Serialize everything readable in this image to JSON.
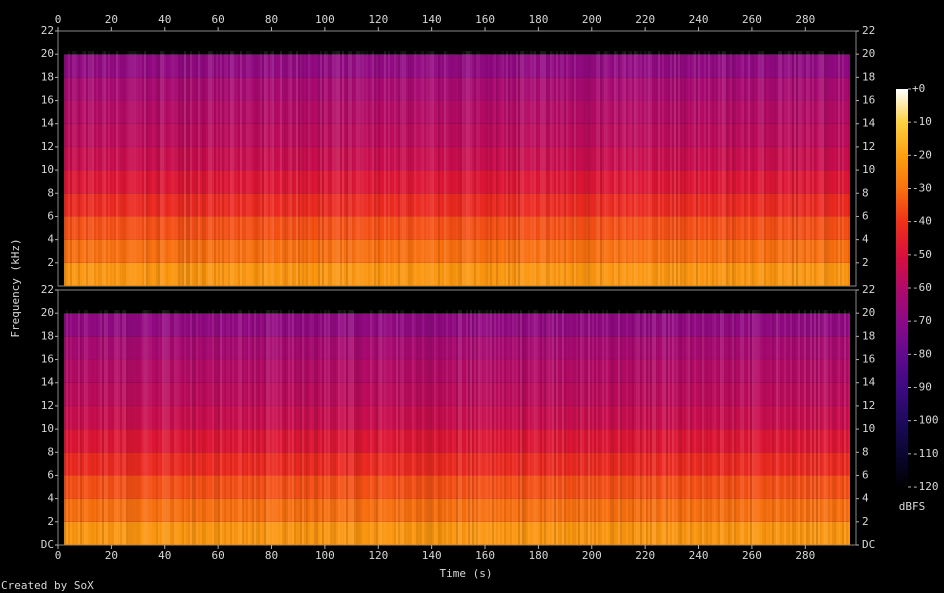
{
  "chart_data": {
    "type": "spectrogram",
    "x_label": "Time (s)",
    "y_label": "Frequency (kHz)",
    "credit": "Created by SoX",
    "xlim": [
      0,
      299
    ],
    "xticks": [
      0,
      20,
      40,
      60,
      80,
      100,
      120,
      140,
      160,
      180,
      200,
      220,
      240,
      260,
      280
    ],
    "colorbar": {
      "label": "dBFS",
      "clim": [
        -120,
        0
      ],
      "ticks": [
        {
          "value": 0,
          "label": "+0"
        },
        -10,
        -20,
        -30,
        -40,
        -50,
        -60,
        -70,
        -80,
        -90,
        -100,
        -110,
        -120
      ],
      "colors": [
        "#000000",
        "#0a0630",
        "#1c0a5c",
        "#3c0a80",
        "#600a8c",
        "#8a0a88",
        "#b00a6a",
        "#d8103c",
        "#f0301a",
        "#f87010",
        "#fca010",
        "#fdd040",
        "#ffffff"
      ]
    },
    "panels": [
      {
        "ylim": [
          0,
          22
        ],
        "yticks": [
          2,
          4,
          6,
          8,
          10,
          12,
          14,
          16,
          18,
          20,
          22
        ],
        "frequency_bins": [
          0,
          2,
          4,
          6,
          8,
          10,
          12,
          14,
          16,
          18,
          20,
          22
        ],
        "levels": [
          -22,
          -30,
          -35,
          -42,
          -48,
          -54,
          -57,
          -59,
          -62,
          -68,
          -120
        ]
      },
      {
        "ylim": [
          0,
          22
        ],
        "yticks": [
          {
            "value": 0,
            "label": "DC"
          },
          2,
          4,
          6,
          8,
          10,
          12,
          14,
          16,
          18,
          20,
          22
        ],
        "frequency_bins": [
          0,
          2,
          4,
          6,
          8,
          10,
          12,
          14,
          16,
          18,
          20,
          22
        ],
        "levels": [
          -22,
          -30,
          -35,
          -42,
          -48,
          -54,
          -57,
          -59,
          -62,
          -68,
          -120
        ]
      }
    ]
  }
}
